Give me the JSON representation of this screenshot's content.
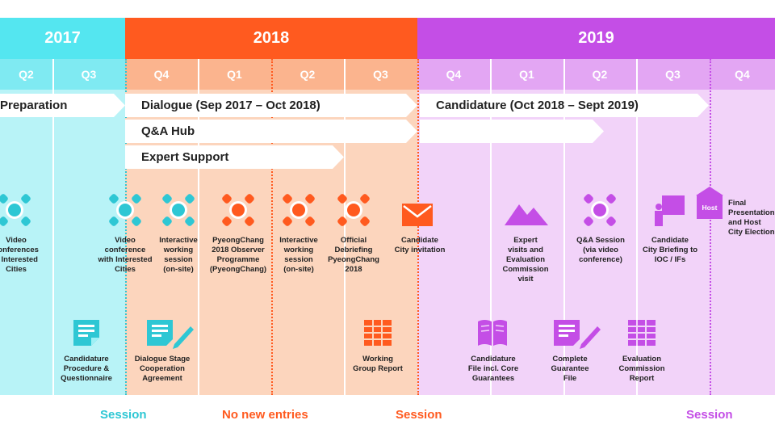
{
  "colors": {
    "cyan": "#54e6f0",
    "cyan_light": "#b8f3f7",
    "orange": "#ff5a1f",
    "orange_light": "#fbc7a9",
    "purple": "#c44ee6",
    "purple_light": "#edc4f6",
    "orange_icon": "#ff5a1f",
    "cyan_icon": "#2ec7d4",
    "purple_icon": "#c44ee6"
  },
  "years": [
    "2017",
    "2018",
    "2019"
  ],
  "quarters": [
    "Q2",
    "Q3",
    "Q4",
    "Q1",
    "Q2",
    "Q3",
    "Q4",
    "Q1",
    "Q2",
    "Q3",
    "Q4"
  ],
  "arrows": {
    "preparation": "Preparation",
    "dialogue": "Dialogue (Sep 2017 – Oct 2018)",
    "qa_hub": "Q&A Hub",
    "expert_support": "Expert Support",
    "candidature": "Candidature (Oct 2018 – Sept 2019)"
  },
  "events_top": [
    {
      "icon": "video-conference-icon",
      "lines": [
        "Video",
        "conferences",
        "n Interested",
        "Cities"
      ]
    },
    {
      "icon": "video-conference-icon",
      "lines": [
        "Video",
        "conference",
        "with Interested",
        "Cities"
      ]
    },
    {
      "icon": "video-conference-icon",
      "lines": [
        "Interactive",
        "working",
        "session",
        "(on-site)"
      ]
    },
    {
      "icon": "video-conference-icon",
      "lines": [
        "PyeongChang",
        "2018 Observer",
        "Programme",
        "(PyeongChang)"
      ]
    },
    {
      "icon": "video-conference-icon",
      "lines": [
        "Interactive",
        "working",
        "session",
        "(on-site)"
      ]
    },
    {
      "icon": "video-conference-icon",
      "lines": [
        "Official",
        "Debriefing",
        "PyeongChang",
        "2018"
      ]
    },
    {
      "icon": "envelope-icon",
      "lines": [
        "Candidate",
        "City invitation"
      ]
    },
    {
      "icon": "mountain-icon",
      "lines": [
        "Expert",
        "visits and",
        "Evaluation",
        "Commission",
        "visit"
      ]
    },
    {
      "icon": "video-conference-icon",
      "lines": [
        "Q&A Session",
        "(via video",
        "conference)"
      ]
    },
    {
      "icon": "presentation-icon",
      "lines": [
        "Candidate",
        "City Briefing to",
        "IOC / IFs"
      ]
    },
    {
      "icon": "host-icon",
      "lines": [
        "Final",
        "Presentation",
        "and Host",
        "City Election"
      ]
    }
  ],
  "host_label": "Host",
  "events_bottom": [
    {
      "icon": "document-icon",
      "lines": [
        "Candidature",
        "Procedure &",
        "Questionnaire"
      ]
    },
    {
      "icon": "document-pen-icon",
      "lines": [
        "Dialogue Stage",
        "Cooperation",
        "Agreement"
      ]
    },
    {
      "icon": "table-icon",
      "lines": [
        "Working",
        "Group Report"
      ]
    },
    {
      "icon": "book-icon",
      "lines": [
        "Candidature",
        "File incl. Core",
        "Guarantees"
      ]
    },
    {
      "icon": "document-pen-icon",
      "lines": [
        "Complete",
        "Guarantee",
        "File"
      ]
    },
    {
      "icon": "table-icon",
      "lines": [
        "Evaluation",
        "Commission",
        "Report"
      ]
    }
  ],
  "footer": [
    "Session",
    "No new entries",
    "Session",
    "Session"
  ]
}
